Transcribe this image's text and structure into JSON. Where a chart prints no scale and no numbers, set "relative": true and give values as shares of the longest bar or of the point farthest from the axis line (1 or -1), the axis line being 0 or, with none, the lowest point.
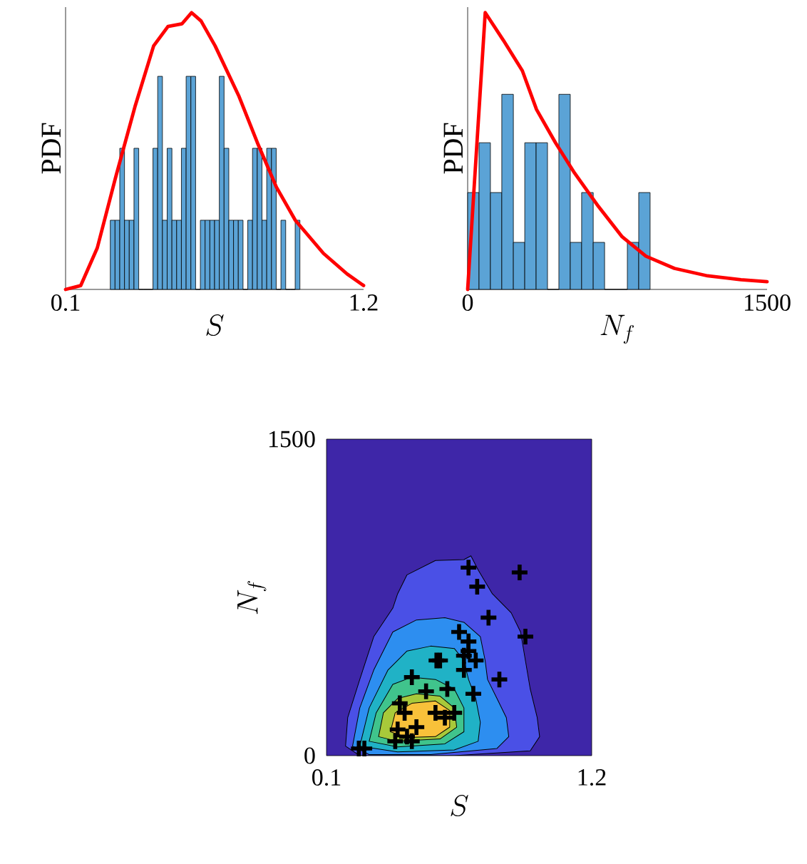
{
  "chart_data": [
    {
      "type": "histogram",
      "relative": true,
      "xlabel": "S",
      "ylabel": "PDF",
      "xlim": [
        0.1,
        1.2
      ],
      "xticks": [
        0.1,
        1.2
      ],
      "series": [
        {
          "type": "histogram",
          "color": "#5ba3d6",
          "bins": [
            0.265,
            0.2825,
            0.3,
            0.3175,
            0.335,
            0.3525,
            0.37,
            0.3875,
            0.405,
            0.4225,
            0.44,
            0.4575,
            0.475,
            0.4925,
            0.51,
            0.5275,
            0.545,
            0.5625,
            0.58,
            0.5975,
            0.615,
            0.6325,
            0.65,
            0.6675,
            0.685,
            0.7025,
            0.72,
            0.7375,
            0.755,
            0.7725,
            0.79,
            0.8075,
            0.825,
            0.8425,
            0.86,
            0.8775,
            0.895,
            0.9125,
            0.93,
            0.9475,
            0.965
          ],
          "values": [
            0.25,
            0.25,
            0.51,
            0.25,
            0.25,
            0.51,
            0,
            0,
            0,
            0.51,
            0.77,
            0.25,
            0.51,
            0.25,
            0.25,
            0.51,
            0.77,
            0.77,
            0,
            0.25,
            0.25,
            0.25,
            0.25,
            0.77,
            0.51,
            0.25,
            0.25,
            0.25,
            0,
            0.25,
            0.51,
            0.51,
            0.25,
            0.51,
            0.51,
            0,
            0.25,
            0,
            0,
            0.25
          ]
        },
        {
          "type": "line",
          "color": "#ff0000",
          "x": [
            0.1,
            0.156,
            0.217,
            0.286,
            0.356,
            0.425,
            0.478,
            0.53,
            0.565,
            0.6,
            0.652,
            0.739,
            0.808,
            0.878,
            0.948,
            1.052,
            1.139,
            1.2
          ],
          "values": [
            0,
            0.014,
            0.15,
            0.41,
            0.66,
            0.88,
            0.95,
            0.96,
            1.0,
            0.97,
            0.88,
            0.7,
            0.53,
            0.37,
            0.25,
            0.13,
            0.056,
            0.014
          ]
        }
      ]
    },
    {
      "type": "histogram",
      "relative": true,
      "xlabel": "N_f",
      "ylabel": "PDF",
      "xlim": [
        0,
        1500
      ],
      "xticks": [
        0,
        1500
      ],
      "series": [
        {
          "type": "histogram",
          "color": "#5ba3d6",
          "bins": [
            0,
            57,
            114,
            171,
            229,
            286,
            343,
            400,
            457,
            514,
            571,
            629,
            686,
            743,
            800,
            857,
            914
          ],
          "values": [
            0.35,
            0.53,
            0.35,
            0.705,
            0.17,
            0.53,
            0.53,
            0,
            0.705,
            0.17,
            0.35,
            0.17,
            0,
            0,
            0.17,
            0.35
          ]
        },
        {
          "type": "line",
          "color": "#ff0000",
          "x": [
            0,
            88,
            179,
            274,
            345,
            440,
            536,
            655,
            774,
            893,
            1036,
            1202,
            1369,
            1500
          ],
          "values": [
            0,
            1,
            0.9,
            0.79,
            0.65,
            0.53,
            0.42,
            0.3,
            0.19,
            0.12,
            0.076,
            0.049,
            0.035,
            0.028
          ]
        }
      ]
    },
    {
      "type": "scatter",
      "xlabel": "S",
      "ylabel": "N_f",
      "xlim": [
        0.1,
        1.2
      ],
      "xticks": [
        0.1,
        1.2
      ],
      "ylim": [
        0,
        1500
      ],
      "yticks": [
        0,
        1500
      ],
      "bands": [
        {
          "axis": "y",
          "from": 0,
          "to": 1500,
          "color": "#3e26a8"
        }
      ],
      "series": [
        {
          "type": "area",
          "color": "#4a50e6",
          "x": [
            0.179,
            0.188,
            0.238,
            0.296,
            0.375,
            0.395,
            0.434,
            0.552,
            0.67,
            0.699,
            0.729,
            0.788,
            0.866,
            0.905,
            0.925,
            0.945,
            0.974,
            0.984,
            0.945,
            0.63,
            0.238
          ],
          "values": [
            45,
            180,
            361,
            564,
            699,
            767,
            857,
            925,
            929,
            947,
            880,
            767,
            677,
            586,
            451,
            316,
            180,
            90,
            23,
            0,
            0
          ]
        },
        {
          "type": "area",
          "color": "#2d8ef0",
          "x": [
            0.208,
            0.238,
            0.296,
            0.375,
            0.473,
            0.591,
            0.67,
            0.738,
            0.758,
            0.768,
            0.807,
            0.846,
            0.856,
            0.807,
            0.532,
            0.277
          ],
          "values": [
            45,
            226,
            406,
            586,
            643,
            654,
            632,
            564,
            451,
            361,
            271,
            180,
            90,
            34,
            5,
            5
          ]
        },
        {
          "type": "area",
          "color": "#20b2c6",
          "x": [
            0.238,
            0.277,
            0.355,
            0.434,
            0.532,
            0.63,
            0.67,
            0.689,
            0.719,
            0.738,
            0.729,
            0.63,
            0.395
          ],
          "values": [
            45,
            226,
            406,
            496,
            519,
            508,
            451,
            361,
            271,
            158,
            68,
            27,
            18
          ]
        },
        {
          "type": "area",
          "color": "#40c48c",
          "x": [
            0.277,
            0.306,
            0.375,
            0.454,
            0.552,
            0.63,
            0.67,
            0.67,
            0.591,
            0.395
          ],
          "values": [
            68,
            203,
            338,
            372,
            361,
            316,
            226,
            113,
            56,
            41
          ]
        },
        {
          "type": "area",
          "color": "#a8c93a",
          "x": [
            0.316,
            0.336,
            0.395,
            0.473,
            0.571,
            0.63,
            0.64,
            0.571,
            0.395
          ],
          "values": [
            90,
            203,
            271,
            293,
            282,
            226,
            135,
            79,
            68
          ]
        },
        {
          "type": "area",
          "color": "#f8c13a",
          "x": [
            0.365,
            0.385,
            0.454,
            0.552,
            0.611,
            0.611,
            0.552,
            0.434
          ],
          "values": [
            113,
            203,
            248,
            259,
            214,
            135,
            90,
            86
          ]
        },
        {
          "type": "scatter",
          "marker": "cross",
          "color": "#000000",
          "x": [
            0.234,
            0.257,
            0.689,
            0.725,
            0.901,
            0.772,
            0.925,
            0.65,
            0.689,
            0.67,
            0.719,
            0.571,
            0.556,
            0.454,
            0.817,
            0.601,
            0.709,
            0.513,
            0.404,
            0.424,
            0.552,
            0.63,
            0.591,
            0.395,
            0.473,
            0.434,
            0.385,
            0.454,
            0.67,
            0.689
          ],
          "values": [
            34,
            34,
            891,
            801,
            868,
            654,
            564,
            586,
            541,
            474,
            451,
            451,
            451,
            372,
            361,
            316,
            293,
            305,
            248,
            203,
            203,
            203,
            180,
            124,
            135,
            90,
            68,
            68,
            406,
            496
          ]
        }
      ]
    }
  ]
}
